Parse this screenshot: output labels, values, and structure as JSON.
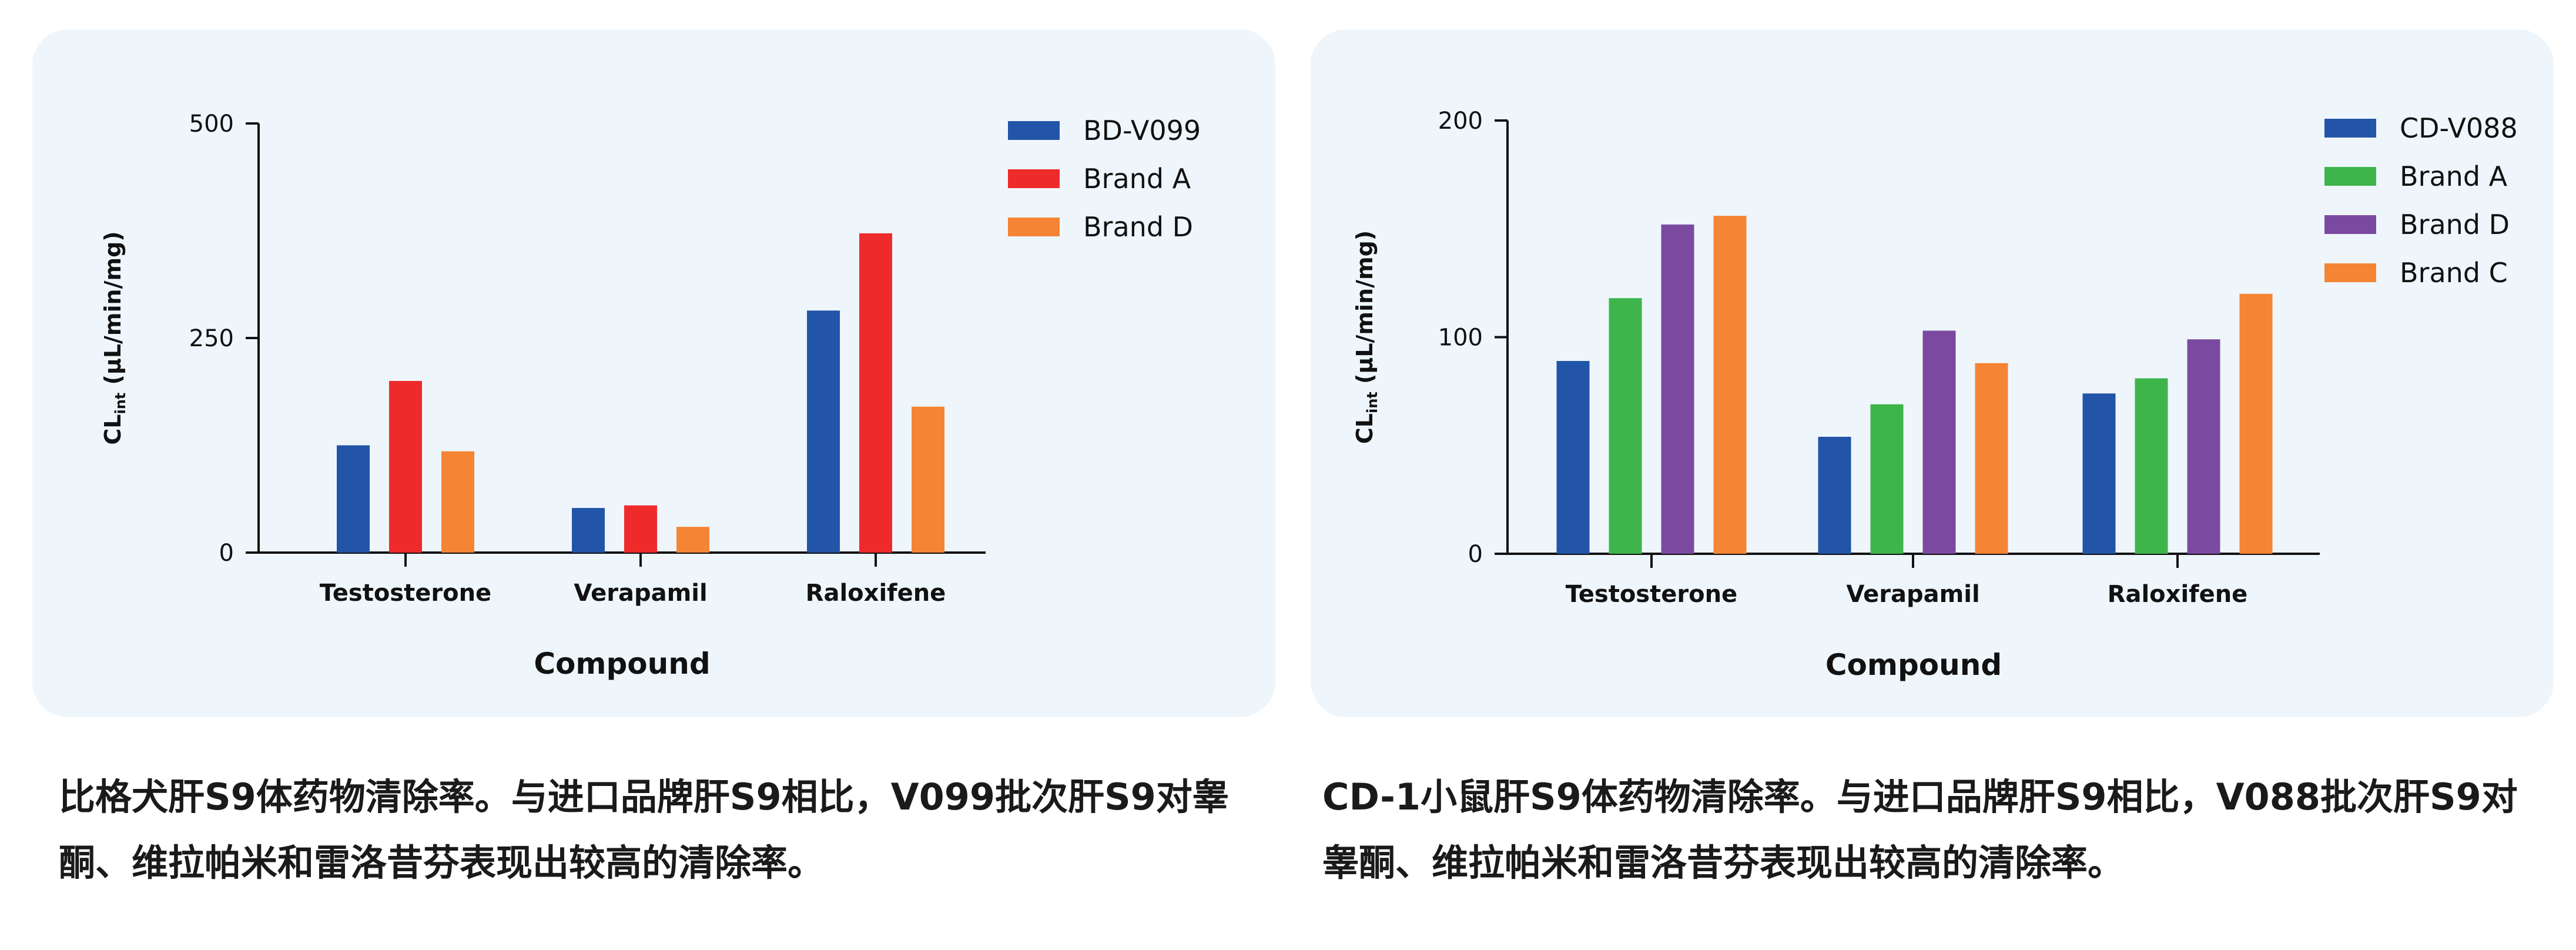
{
  "chart_data": [
    {
      "type": "bar",
      "categories": [
        "Testosterone",
        "Verapamil",
        "Raloxifene"
      ],
      "series": [
        {
          "name": "BD-V099",
          "color": "#2255a8",
          "values": [
            125,
            52,
            282
          ]
        },
        {
          "name": "Brand A",
          "color": "#ee2a2a",
          "values": [
            200,
            55,
            372
          ]
        },
        {
          "name": "Brand D",
          "color": "#f58434",
          "values": [
            118,
            30,
            170
          ]
        }
      ],
      "xlabel": "Compound",
      "ylabel": "CLint (µL/min/mg)",
      "ylabel_main": "CL",
      "ylabel_sub": "int",
      "ylabel_rest": " (µL/min/mg)",
      "ylim": [
        0,
        500
      ],
      "yticks": [
        "0",
        "250",
        "500"
      ],
      "grid": false,
      "legend_position": "top-right"
    },
    {
      "type": "bar",
      "categories": [
        "Testosterone",
        "Verapamil",
        "Raloxifene"
      ],
      "series": [
        {
          "name": "CD-V088",
          "color": "#2255a8",
          "values": [
            89,
            54,
            74
          ]
        },
        {
          "name": "Brand A",
          "color": "#3db54a",
          "values": [
            118,
            69,
            81
          ]
        },
        {
          "name": "Brand D",
          "color": "#7b4aa0",
          "values": [
            152,
            103,
            99
          ]
        },
        {
          "name": "Brand C",
          "color": "#f58434",
          "values": [
            156,
            88,
            120
          ]
        }
      ],
      "xlabel": "Compound",
      "ylabel": "CLint (µL/min/mg)",
      "ylabel_main": "CL",
      "ylabel_sub": "int",
      "ylabel_rest": " (µL/min/mg)",
      "ylim": [
        0,
        200
      ],
      "yticks": [
        "0",
        "100",
        "200"
      ],
      "grid": false,
      "legend_position": "top-right"
    }
  ],
  "captions": {
    "left": "比格犬肝S9体药物清除率。与进口品牌肝S9相比，V099批次肝S9对睾酮、维拉帕米和雷洛昔芬表现出较高的清除率。",
    "right": "CD-1小鼠肝S9体药物清除率。与进口品牌肝S9相比，V088批次肝S9对睾酮、维拉帕米和雷洛昔芬表现出较高的清除率。"
  }
}
